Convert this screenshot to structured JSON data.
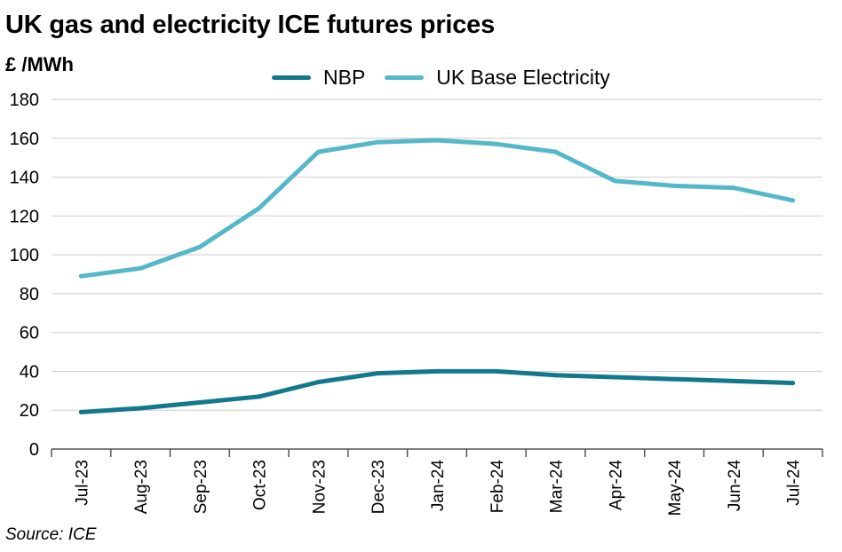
{
  "title": "UK gas and electricity ICE futures prices",
  "source": "Source: ICE",
  "chart_data": {
    "type": "line",
    "title": "UK gas and electricity ICE futures prices",
    "ylabel": "£ /MWh",
    "xlabel": "",
    "ylim": [
      0,
      180
    ],
    "yticks": [
      0,
      20,
      40,
      60,
      80,
      100,
      120,
      140,
      160,
      180
    ],
    "grid": true,
    "legend_position": "top",
    "categories": [
      "Jul-23",
      "Aug-23",
      "Sep-23",
      "Oct-23",
      "Nov-23",
      "Dec-23",
      "Jan-24",
      "Feb-24",
      "Mar-24",
      "Apr-24",
      "May-24",
      "Jun-24",
      "Jul-24"
    ],
    "series": [
      {
        "name": "NBP",
        "color": "#13788c",
        "values": [
          19,
          21,
          24,
          27,
          34.5,
          39,
          40,
          40,
          38,
          37,
          36,
          35,
          34
        ]
      },
      {
        "name": "UK Base Electricity",
        "color": "#55b8c8",
        "values": [
          89,
          93,
          104,
          124,
          153,
          158,
          159,
          157,
          153,
          138,
          135.5,
          134.5,
          128
        ]
      }
    ]
  }
}
